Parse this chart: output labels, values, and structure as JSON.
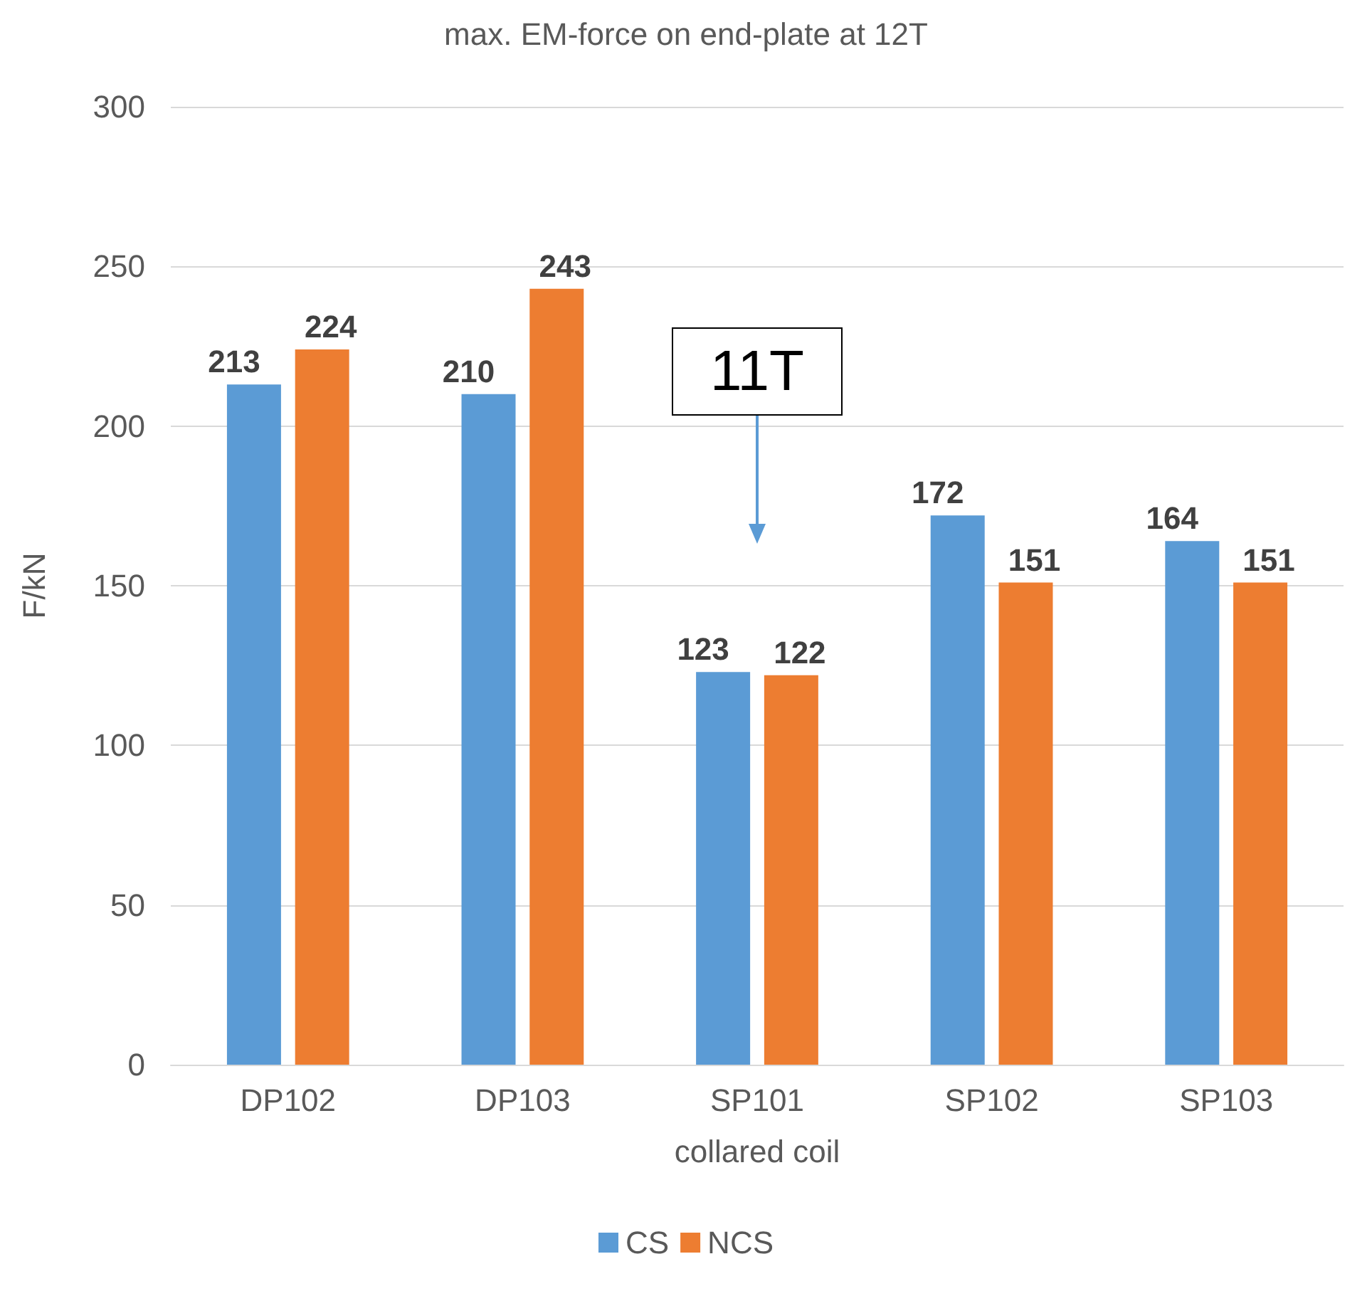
{
  "chart_data": {
    "type": "bar",
    "title": "max. EM-force on end-plate at 12T",
    "xlabel": "collared coil",
    "ylabel": "F/kN",
    "categories": [
      "DP102",
      "DP103",
      "SP101",
      "SP102",
      "SP103"
    ],
    "series": [
      {
        "name": "CS",
        "color": "#5b9bd5",
        "values": [
          213,
          210,
          123,
          172,
          164
        ]
      },
      {
        "name": "NCS",
        "color": "#ed7d31",
        "values": [
          224,
          243,
          122,
          151,
          151
        ]
      }
    ],
    "ylim": [
      0,
      300
    ],
    "yticks": [
      0,
      50,
      100,
      150,
      200,
      250,
      300
    ],
    "grid": "y",
    "legend": "bottom",
    "data_labels": true,
    "annotations": [
      "11T"
    ]
  }
}
